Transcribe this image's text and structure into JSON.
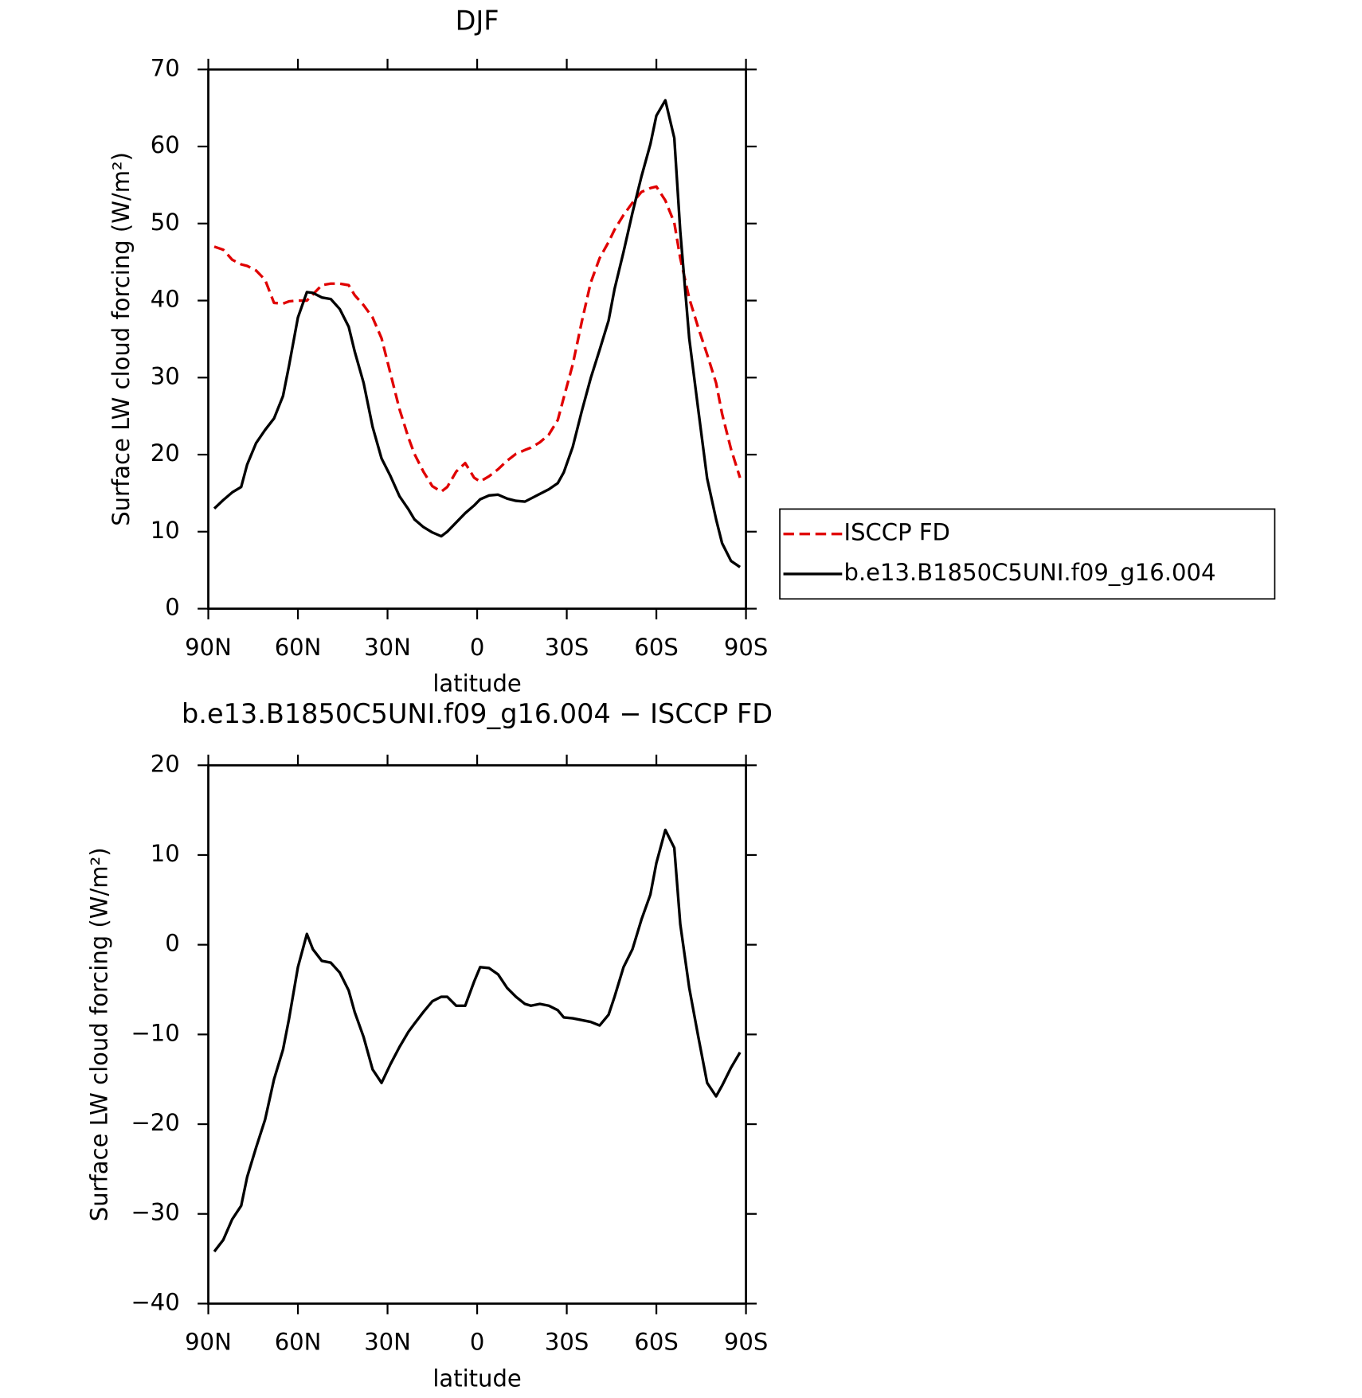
{
  "chart_data": [
    {
      "type": "line",
      "title": "DJF",
      "xlabel": "latitude",
      "ylabel": "Surface LW cloud forcing (W/m²)",
      "x": [
        88,
        85,
        82,
        79,
        77,
        74,
        71,
        68,
        65,
        63,
        60,
        57,
        55,
        52,
        49,
        46,
        43,
        41,
        38,
        35,
        32,
        29,
        26,
        23,
        21,
        18,
        15,
        12,
        10,
        7,
        4,
        1,
        -1,
        -4,
        -7,
        -10,
        -13,
        -16,
        -18,
        -21,
        -24,
        -27,
        -29,
        -32,
        -35,
        -38,
        -41,
        -44,
        -46,
        -49,
        -52,
        -55,
        -58,
        -60,
        -63,
        -66,
        -68,
        -71,
        -74,
        -77,
        -80,
        -82,
        -85,
        -88
      ],
      "series": [
        {
          "name": "ISCCP FD",
          "color": "#e00000",
          "style": "dashed",
          "values": [
            47.0,
            46.6,
            45.3,
            44.7,
            44.5,
            43.9,
            42.7,
            39.7,
            39.6,
            39.9,
            40.0,
            40.0,
            40.8,
            42.0,
            42.2,
            42.2,
            42.0,
            40.7,
            39.4,
            37.8,
            35.1,
            30.5,
            25.9,
            22.2,
            20.1,
            17.8,
            15.9,
            15.2,
            15.8,
            17.8,
            18.9,
            17.0,
            16.5,
            17.2,
            18.1,
            19.2,
            20.1,
            20.6,
            20.9,
            21.6,
            22.6,
            24.5,
            27.4,
            31.7,
            37.2,
            42.3,
            45.5,
            47.6,
            49.2,
            51.1,
            52.7,
            54.1,
            54.6,
            54.8,
            53.0,
            50.1,
            45.5,
            40.3,
            36.5,
            33.0,
            29.3,
            25.3,
            20.7,
            17.0
          ]
        },
        {
          "name": "b.e13.B1850C5UNI.f09_g16.004",
          "color": "#000000",
          "style": "solid",
          "values": [
            13.0,
            14.1,
            15.1,
            15.8,
            18.7,
            21.5,
            23.2,
            24.7,
            27.6,
            31.5,
            37.8,
            41.1,
            41.0,
            40.4,
            40.2,
            38.9,
            36.6,
            33.4,
            29.3,
            23.6,
            19.5,
            17.2,
            14.6,
            12.9,
            11.6,
            10.6,
            9.9,
            9.4,
            10.0,
            11.2,
            12.4,
            13.4,
            14.2,
            14.7,
            14.8,
            14.3,
            14.0,
            13.9,
            14.3,
            14.9,
            15.5,
            16.3,
            17.7,
            21.0,
            25.6,
            29.9,
            33.6,
            37.4,
            41.5,
            46.3,
            51.4,
            56.1,
            60.3,
            64.0,
            66.0,
            61.1,
            49.0,
            35.1,
            25.9,
            16.9,
            11.6,
            8.5,
            6.2,
            5.4
          ]
        }
      ],
      "xlim": [
        90,
        -90
      ],
      "xticks": [
        {
          "value": 90,
          "label": "90N"
        },
        {
          "value": 60,
          "label": "60N"
        },
        {
          "value": 30,
          "label": "30N"
        },
        0,
        {
          "value": -30,
          "label": "30S"
        },
        {
          "value": -60,
          "label": "60S"
        },
        {
          "value": -90,
          "label": "90S"
        }
      ],
      "ylim": [
        0,
        70
      ],
      "yticks": [
        0,
        10,
        20,
        30,
        40,
        50,
        60,
        70
      ],
      "legend": "outside-right"
    },
    {
      "type": "line",
      "title": "b.e13.B1850C5UNI.f09_g16.004 − ISCCP FD",
      "xlabel": "latitude",
      "ylabel": "Surface LW cloud forcing (W/m²)",
      "x": [
        88,
        85,
        82,
        79,
        77,
        74,
        71,
        68,
        65,
        63,
        60,
        57,
        55,
        52,
        49,
        46,
        43,
        41,
        38,
        35,
        32,
        29,
        26,
        23,
        21,
        18,
        15,
        12,
        10,
        7,
        4,
        1,
        -1,
        -4,
        -7,
        -10,
        -13,
        -16,
        -18,
        -21,
        -24,
        -27,
        -29,
        -32,
        -35,
        -38,
        -41,
        -44,
        -46,
        -49,
        -52,
        -55,
        -58,
        -60,
        -63,
        -66,
        -68,
        -71,
        -74,
        -77,
        -80,
        -82,
        -85,
        -88
      ],
      "series": [
        {
          "color": "#000000",
          "style": "solid",
          "values": [
            -34.2,
            -32.9,
            -30.6,
            -29.1,
            -25.9,
            -22.6,
            -19.5,
            -15.0,
            -11.7,
            -8.3,
            -2.5,
            1.2,
            -0.5,
            -1.8,
            -2.0,
            -3.1,
            -5.1,
            -7.5,
            -10.3,
            -13.9,
            -15.4,
            -13.3,
            -11.4,
            -9.7,
            -8.8,
            -7.5,
            -6.3,
            -5.8,
            -5.8,
            -6.8,
            -6.8,
            -4.1,
            -2.5,
            -2.6,
            -3.3,
            -4.8,
            -5.8,
            -6.6,
            -6.8,
            -6.6,
            -6.8,
            -7.3,
            -8.1,
            -8.2,
            -8.4,
            -8.6,
            -9.0,
            -7.8,
            -5.8,
            -2.5,
            -0.5,
            2.8,
            5.6,
            9.1,
            12.8,
            10.8,
            2.3,
            -4.8,
            -10.2,
            -15.4,
            -16.9,
            -15.7,
            -13.7,
            -12.0
          ]
        }
      ],
      "xlim": [
        90,
        -90
      ],
      "xticks": [
        {
          "value": 90,
          "label": "90N"
        },
        {
          "value": 60,
          "label": "60N"
        },
        {
          "value": 30,
          "label": "30N"
        },
        0,
        {
          "value": -30,
          "label": "30S"
        },
        {
          "value": -60,
          "label": "60S"
        },
        {
          "value": -90,
          "label": "90S"
        }
      ],
      "ylim": [
        -40,
        20
      ],
      "yticks": [
        {
          "value": -40,
          "label": "−40"
        },
        {
          "value": -30,
          "label": "−30"
        },
        {
          "value": -20,
          "label": "−20"
        },
        {
          "value": -10,
          "label": "−10"
        },
        0,
        10,
        20
      ]
    }
  ]
}
